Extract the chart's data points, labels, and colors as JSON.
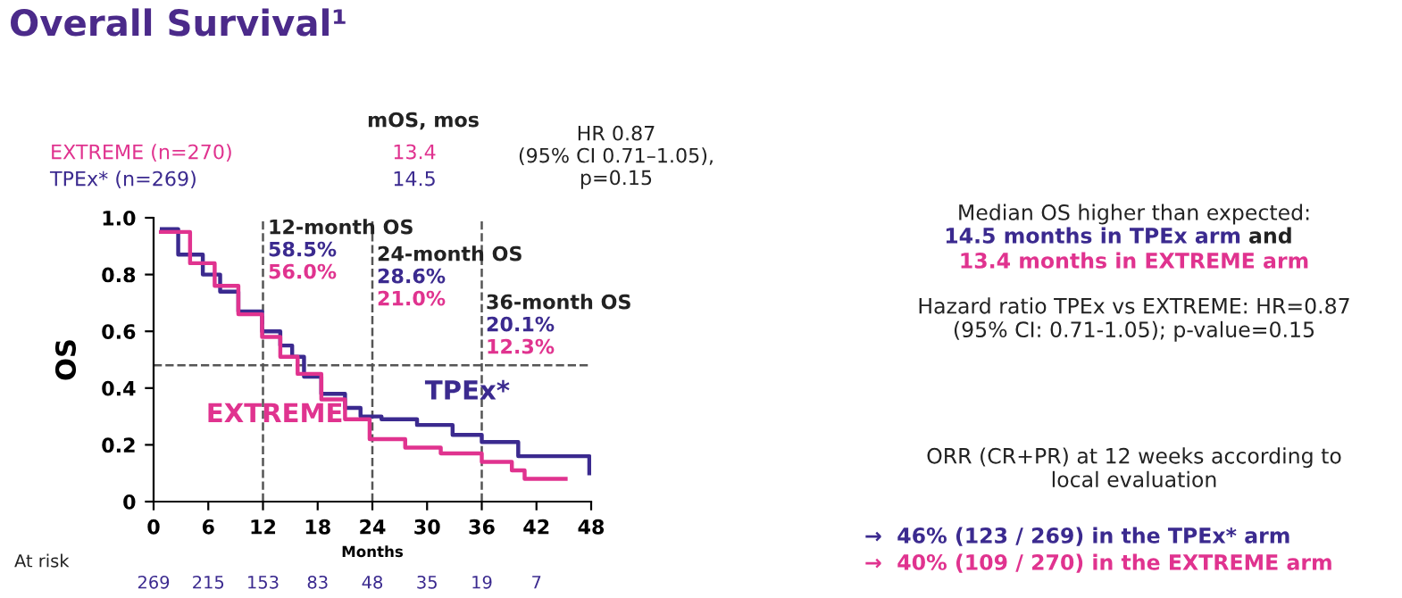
{
  "chart_data": {
    "type": "step",
    "title": "Overall Survival¹",
    "xlabel": "Months",
    "ylabel": "OS",
    "xlim": [
      0,
      48
    ],
    "ylim": [
      0,
      1
    ],
    "xticks": [
      0,
      6,
      12,
      18,
      24,
      30,
      36,
      42,
      48
    ],
    "yticks": [
      0,
      0.2,
      0.4,
      0.6,
      0.8,
      {
        "value": 1,
        "label": "1.0"
      }
    ],
    "grid": false,
    "legend": false,
    "series": [
      {
        "name": "TPEx*",
        "color": "#3b2a8f",
        "x": [
          0.9,
          2.7,
          5.4,
          7.3,
          9.3,
          11.9,
          13.9,
          15.2,
          16.5,
          18.4,
          21,
          22.7,
          25,
          28.9,
          32.8,
          36,
          40,
          47.8
        ],
        "values": [
          0.96,
          0.87,
          0.8,
          0.74,
          0.67,
          0.6,
          0.55,
          0.51,
          0.44,
          0.38,
          0.33,
          0.3,
          0.29,
          0.27,
          0.235,
          0.21,
          0.16,
          0.1
        ]
      },
      {
        "name": "EXTREME",
        "color": "#e0338f",
        "x": [
          0.8,
          4,
          6.7,
          9.3,
          11.9,
          13.9,
          15.8,
          18.4,
          21,
          23.7,
          27.6,
          31.5,
          36,
          39.3,
          40.7,
          45.2
        ],
        "values": [
          0.95,
          0.84,
          0.76,
          0.66,
          0.58,
          0.51,
          0.45,
          0.36,
          0.29,
          0.22,
          0.19,
          0.17,
          0.14,
          0.11,
          0.08,
          0.08
        ]
      }
    ],
    "ref_lines": [
      {
        "axis": "x",
        "value": 12,
        "line_style": "dashed"
      },
      {
        "axis": "x",
        "value": 24,
        "line_style": "dashed"
      },
      {
        "axis": "x",
        "value": 36,
        "line_style": "dashed"
      },
      {
        "axis": "y",
        "value": 0.48,
        "line_style": "dashed"
      }
    ],
    "annotations": [
      "mOS, mos",
      "EXTREME (n=270)",
      "13.4",
      "TPEx* (n=269)",
      "14.5",
      "HR 0.87\n(95% CI 0.71–1.05),\np=0.15",
      "12-month OS",
      "58.5%",
      "56.0%",
      "24-month OS",
      "28.6%",
      "21.0%",
      "36-month OS",
      "20.1%",
      "12.3%",
      "At risk",
      "269",
      "215",
      "153",
      "83",
      "48",
      "35",
      "19",
      "7",
      "Median OS higher than expected:",
      "14.5 months in TPEx arm",
      "and",
      "13.4 months in EXTREME arm",
      "Hazard ratio TPEx vs EXTREME: HR=0.87\n(95% CI: 0.71-1.05); p-value=0.15",
      "ORR (CR+PR) at 12 weeks according to\nlocal evaluation",
      "→  46% (123 / 269) in the TPEx* arm",
      "→  40% (109 / 270) in the EXTREME arm"
    ]
  }
}
